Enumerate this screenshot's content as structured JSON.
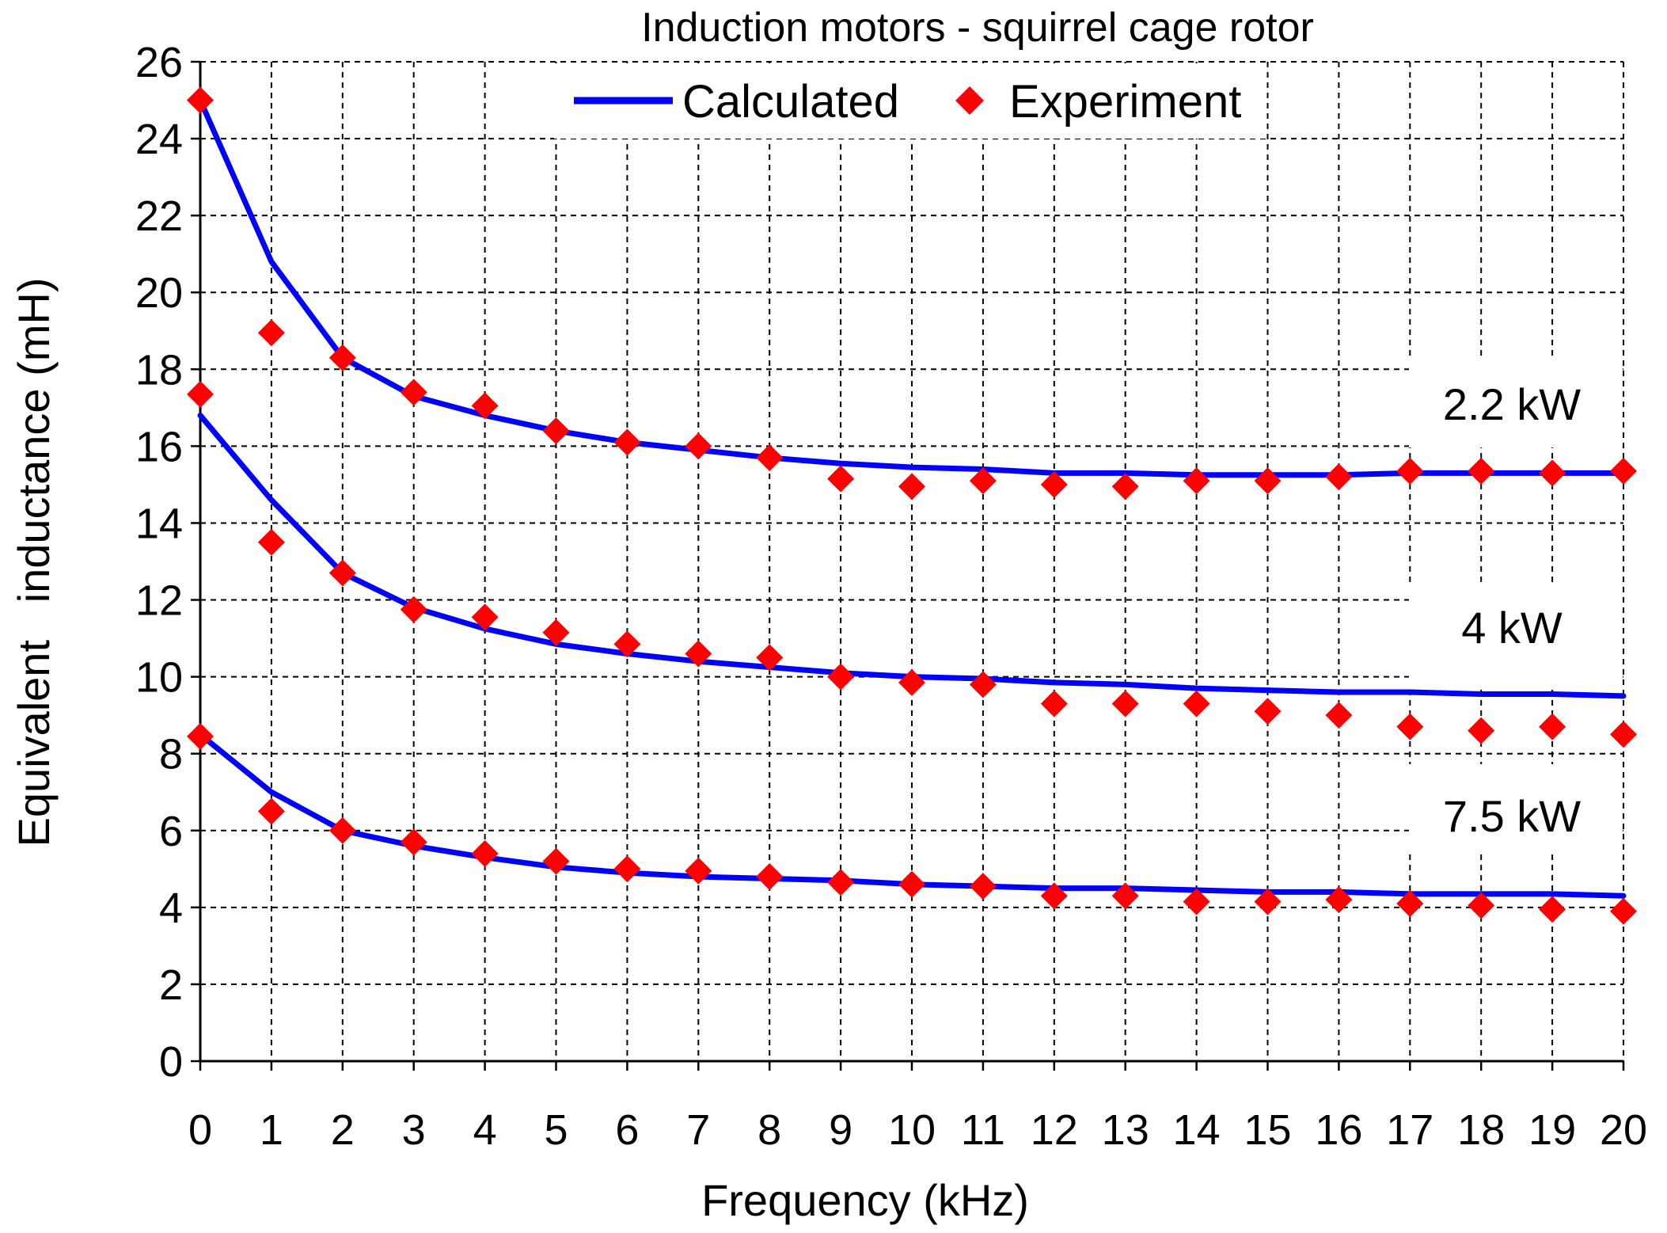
{
  "chart_data": {
    "type": "line",
    "title": "Induction motors - squirrel cage rotor",
    "xlabel": "Frequency (kHz)",
    "ylabel": "Equivalent   inductance (mH)",
    "xlim": [
      0,
      20
    ],
    "ylim": [
      0,
      26
    ],
    "xticks": [
      0,
      1,
      2,
      3,
      4,
      5,
      6,
      7,
      8,
      9,
      10,
      11,
      12,
      13,
      14,
      15,
      16,
      17,
      18,
      19,
      20
    ],
    "yticks": [
      0,
      2,
      4,
      6,
      8,
      10,
      12,
      14,
      16,
      18,
      20,
      22,
      24,
      26
    ],
    "grid": true,
    "legend": {
      "position": "top-center",
      "calculated_label": "Calculated",
      "experiment_label": "Experiment"
    },
    "colors": {
      "calculated": "#0000ff",
      "experiment": "#ff0000"
    },
    "x": [
      0,
      1,
      2,
      3,
      4,
      5,
      6,
      7,
      8,
      9,
      10,
      11,
      12,
      13,
      14,
      15,
      16,
      17,
      18,
      19,
      20
    ],
    "series": [
      {
        "name": "2.2 kW",
        "calculated": [
          25.0,
          20.8,
          18.3,
          17.3,
          16.8,
          16.4,
          16.1,
          15.9,
          15.7,
          15.55,
          15.45,
          15.4,
          15.3,
          15.3,
          15.25,
          15.25,
          15.25,
          15.3,
          15.3,
          15.3,
          15.3
        ],
        "experiment": [
          25.0,
          18.95,
          18.3,
          17.4,
          17.05,
          16.4,
          16.1,
          16.0,
          15.7,
          15.15,
          14.95,
          15.1,
          15.0,
          14.95,
          15.1,
          15.1,
          15.2,
          15.35,
          15.35,
          15.3,
          15.35
        ]
      },
      {
        "name": "4 kW",
        "calculated": [
          16.8,
          14.6,
          12.7,
          11.8,
          11.25,
          10.85,
          10.6,
          10.4,
          10.25,
          10.1,
          10.0,
          9.95,
          9.85,
          9.8,
          9.7,
          9.65,
          9.6,
          9.6,
          9.55,
          9.55,
          9.5
        ],
        "experiment": [
          17.35,
          13.5,
          12.7,
          11.75,
          11.55,
          11.15,
          10.85,
          10.6,
          10.5,
          10.0,
          9.85,
          9.8,
          9.3,
          9.3,
          9.3,
          9.1,
          9.0,
          8.7,
          8.6,
          8.7,
          8.5
        ]
      },
      {
        "name": "7.5 kW",
        "calculated": [
          8.5,
          7.0,
          6.0,
          5.6,
          5.3,
          5.05,
          4.9,
          4.8,
          4.75,
          4.7,
          4.6,
          4.55,
          4.5,
          4.5,
          4.45,
          4.4,
          4.4,
          4.35,
          4.35,
          4.35,
          4.3
        ],
        "experiment": [
          8.45,
          6.5,
          6.0,
          5.7,
          5.4,
          5.2,
          5.0,
          4.95,
          4.8,
          4.65,
          4.6,
          4.55,
          4.3,
          4.3,
          4.15,
          4.15,
          4.2,
          4.1,
          4.05,
          3.95,
          3.9
        ]
      }
    ]
  },
  "series_labels": [
    "2.2 kW",
    "4 kW",
    "7.5 kW"
  ]
}
